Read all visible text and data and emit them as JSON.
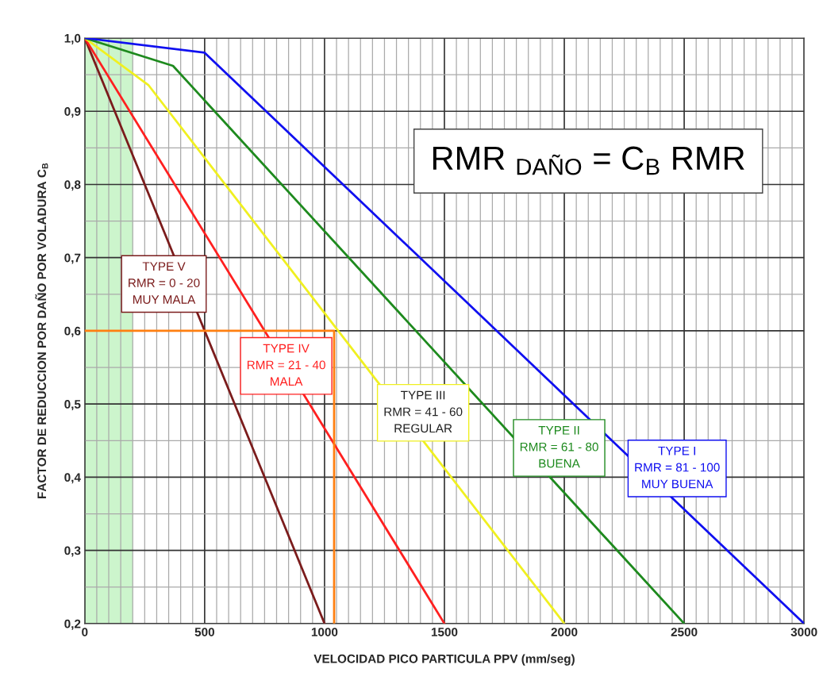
{
  "chart_data": {
    "type": "line",
    "xlabel": "VELOCIDAD PICO PARTICULA PPV (mm/seg)",
    "ylabel": "FACTOR DE REDUCCION POR DAÑO POR VOLADURA C$_{B}$",
    "xlim": [
      0,
      3000
    ],
    "xticks": [
      0,
      500,
      1000,
      1500,
      2000,
      2500,
      3000
    ],
    "ylim": [
      0.2,
      1.0
    ],
    "yticks": [
      {
        "value": 0.2,
        "label": "0,2"
      },
      {
        "value": 0.3,
        "label": "0,3"
      },
      {
        "value": 0.4,
        "label": "0,4"
      },
      {
        "value": 0.5,
        "label": "0,5"
      },
      {
        "value": 0.6,
        "label": "0,6"
      },
      {
        "value": 0.7,
        "label": "0,7"
      },
      {
        "value": 0.8,
        "label": "0,8"
      },
      {
        "value": 0.9,
        "label": "0,9"
      },
      {
        "value": 1.0,
        "label": "1,0"
      }
    ],
    "grid": true,
    "marker": "none",
    "line_style": "solid",
    "bands": [
      {
        "axis": "x",
        "from": 0,
        "to": 200,
        "color": "#ccf5cc"
      }
    ],
    "series": [
      {
        "name": "TYPE V\nRMR = 0 - 20\nMUY MALA",
        "color": "#7b1c1c",
        "x": [
          0,
          1000
        ],
        "values": [
          1.0,
          0.2
        ]
      },
      {
        "name": "TYPE IV\nRMR = 21 - 40\nMALA",
        "color": "#ff2020",
        "x": [
          0,
          1500
        ],
        "values": [
          1.0,
          0.2
        ]
      },
      {
        "name": "TYPE III\nRMR = 41 - 60\nREGULAR",
        "color": "#f0f020",
        "x": [
          0,
          265,
          2000
        ],
        "values": [
          1.0,
          0.936,
          0.2
        ]
      },
      {
        "name": "TYPE II\nRMR = 61 - 80\nBUENA",
        "color": "#1e8a1e",
        "x": [
          0,
          368,
          2500
        ],
        "values": [
          1.0,
          0.962,
          0.2
        ]
      },
      {
        "name": "TYPE I\nRMR = 81 - 100\nMUY BUENA",
        "color": "#1010f0",
        "x": [
          0,
          500,
          3000
        ],
        "values": [
          1.0,
          0.98,
          0.2
        ]
      },
      {
        "color": "#ff7f10",
        "x": [
          0,
          1040,
          1040
        ],
        "values": [
          0.6,
          0.6,
          0.2
        ]
      }
    ],
    "annotations": [
      "RMR $_{DAÑO}$ = C$_{B}$ RMR"
    ]
  }
}
